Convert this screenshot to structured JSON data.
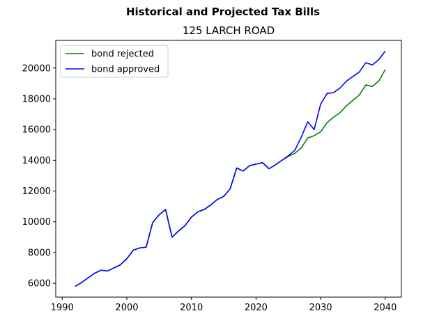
{
  "chart_data": {
    "type": "line",
    "suptitle": "Historical and Projected Tax Bills",
    "title": "125 LARCH ROAD",
    "xlabel": "",
    "ylabel": "",
    "xlim": [
      1989,
      2042.5
    ],
    "ylim": [
      5100,
      21800
    ],
    "xticks": [
      1990,
      2000,
      2010,
      2020,
      2030,
      2040
    ],
    "yticks": [
      6000,
      8000,
      10000,
      12000,
      14000,
      16000,
      18000,
      20000
    ],
    "legend_position": "upper-left",
    "grid": false,
    "series": [
      {
        "name": "bond rejected",
        "color": "#008000",
        "x": [
          1992,
          1993,
          1994,
          1995,
          1996,
          1997,
          1998,
          1999,
          2000,
          2001,
          2002,
          2003,
          2004,
          2005,
          2006,
          2007,
          2008,
          2009,
          2010,
          2011,
          2012,
          2013,
          2014,
          2015,
          2016,
          2017,
          2018,
          2019,
          2020,
          2021,
          2022,
          2023,
          2024,
          2025,
          2026,
          2027,
          2028,
          2029,
          2030,
          2031,
          2032,
          2033,
          2034,
          2035,
          2036,
          2037,
          2038,
          2039,
          2040
        ],
        "y": [
          5800,
          6050,
          6350,
          6650,
          6850,
          6800,
          7000,
          7200,
          7600,
          8150,
          8300,
          8350,
          9950,
          10450,
          10800,
          9000,
          9400,
          9750,
          10300,
          10650,
          10800,
          11100,
          11450,
          11650,
          12150,
          13500,
          13300,
          13650,
          13750,
          13850,
          13450,
          13700,
          14000,
          14250,
          14450,
          14800,
          15450,
          15600,
          15850,
          16450,
          16800,
          17100,
          17550,
          17900,
          18250,
          18900,
          18800,
          19150,
          19900
        ]
      },
      {
        "name": "bond approved",
        "color": "#0000ff",
        "x": [
          1992,
          1993,
          1994,
          1995,
          1996,
          1997,
          1998,
          1999,
          2000,
          2001,
          2002,
          2003,
          2004,
          2005,
          2006,
          2007,
          2008,
          2009,
          2010,
          2011,
          2012,
          2013,
          2014,
          2015,
          2016,
          2017,
          2018,
          2019,
          2020,
          2021,
          2022,
          2023,
          2024,
          2025,
          2026,
          2027,
          2028,
          2029,
          2030,
          2031,
          2032,
          2033,
          2034,
          2035,
          2036,
          2037,
          2038,
          2039,
          2040
        ],
        "y": [
          5800,
          6050,
          6350,
          6650,
          6850,
          6800,
          7000,
          7200,
          7600,
          8150,
          8300,
          8350,
          9950,
          10450,
          10800,
          9000,
          9400,
          9750,
          10300,
          10650,
          10800,
          11100,
          11450,
          11650,
          12150,
          13500,
          13300,
          13650,
          13750,
          13850,
          13450,
          13700,
          14000,
          14300,
          14650,
          15500,
          16500,
          16000,
          17650,
          18350,
          18400,
          18700,
          19150,
          19450,
          19750,
          20350,
          20200,
          20550,
          21100
        ]
      }
    ]
  }
}
